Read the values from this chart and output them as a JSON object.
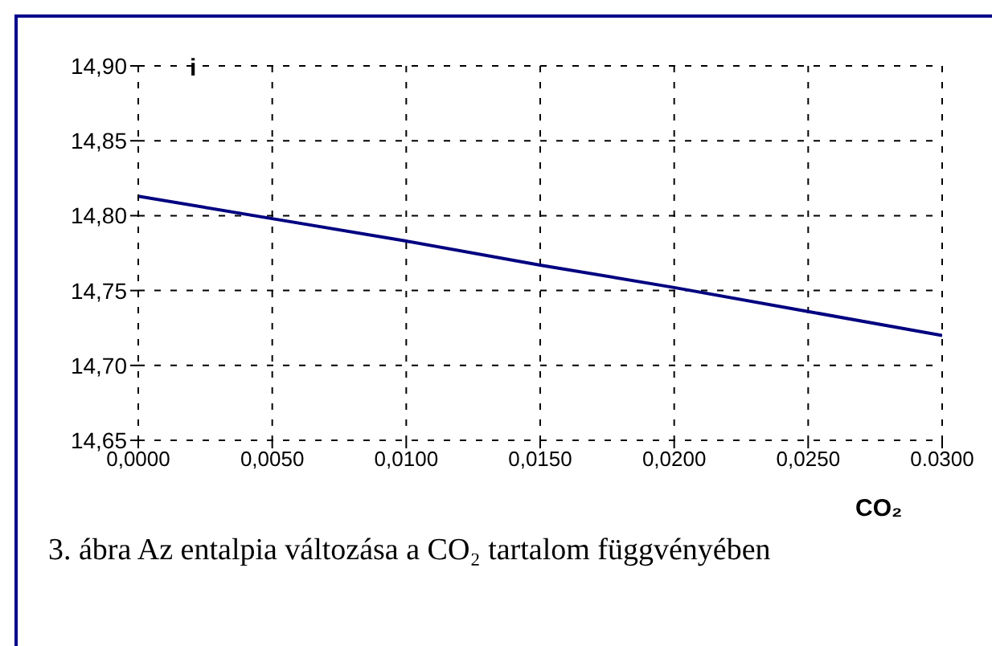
{
  "chart_data": {
    "type": "line",
    "xlabel": "CO₂",
    "ylabel": "i",
    "annotations": [
      "3. ábra Az entalpia változása a CO₂ tartalom függvényében"
    ],
    "x": [
      0,
      0.005,
      0.01,
      0.015,
      0.02,
      0.025,
      0.03
    ],
    "series": [
      {
        "color": "#000080",
        "values": [
          14.813,
          14.798,
          14.783,
          14.767,
          14.752,
          14.736,
          14.72
        ]
      }
    ],
    "xlim": [
      0,
      0.03
    ],
    "xticks": [
      {
        "value": 0,
        "label": "0,0000"
      },
      {
        "value": 0.005,
        "label": "0,0050"
      },
      {
        "value": 0.01,
        "label": "0,0100"
      },
      {
        "value": 0.015,
        "label": "0,0150"
      },
      {
        "value": 0.02,
        "label": "0,0200"
      },
      {
        "value": 0.025,
        "label": "0,0250"
      },
      {
        "value": 0.03,
        "label": "0.0300"
      }
    ],
    "ylim": [
      14.65,
      14.9
    ],
    "yticks": [
      {
        "value": 14.65,
        "label": "14,65"
      },
      {
        "value": 14.7,
        "label": "14,70"
      },
      {
        "value": 14.75,
        "label": "14,75"
      },
      {
        "value": 14.8,
        "label": "14,80"
      },
      {
        "value": 14.85,
        "label": "14,85"
      },
      {
        "value": 14.9,
        "label": "14,90"
      }
    ],
    "grid": true,
    "marker": "none",
    "line_style": "solid",
    "legend": false
  }
}
